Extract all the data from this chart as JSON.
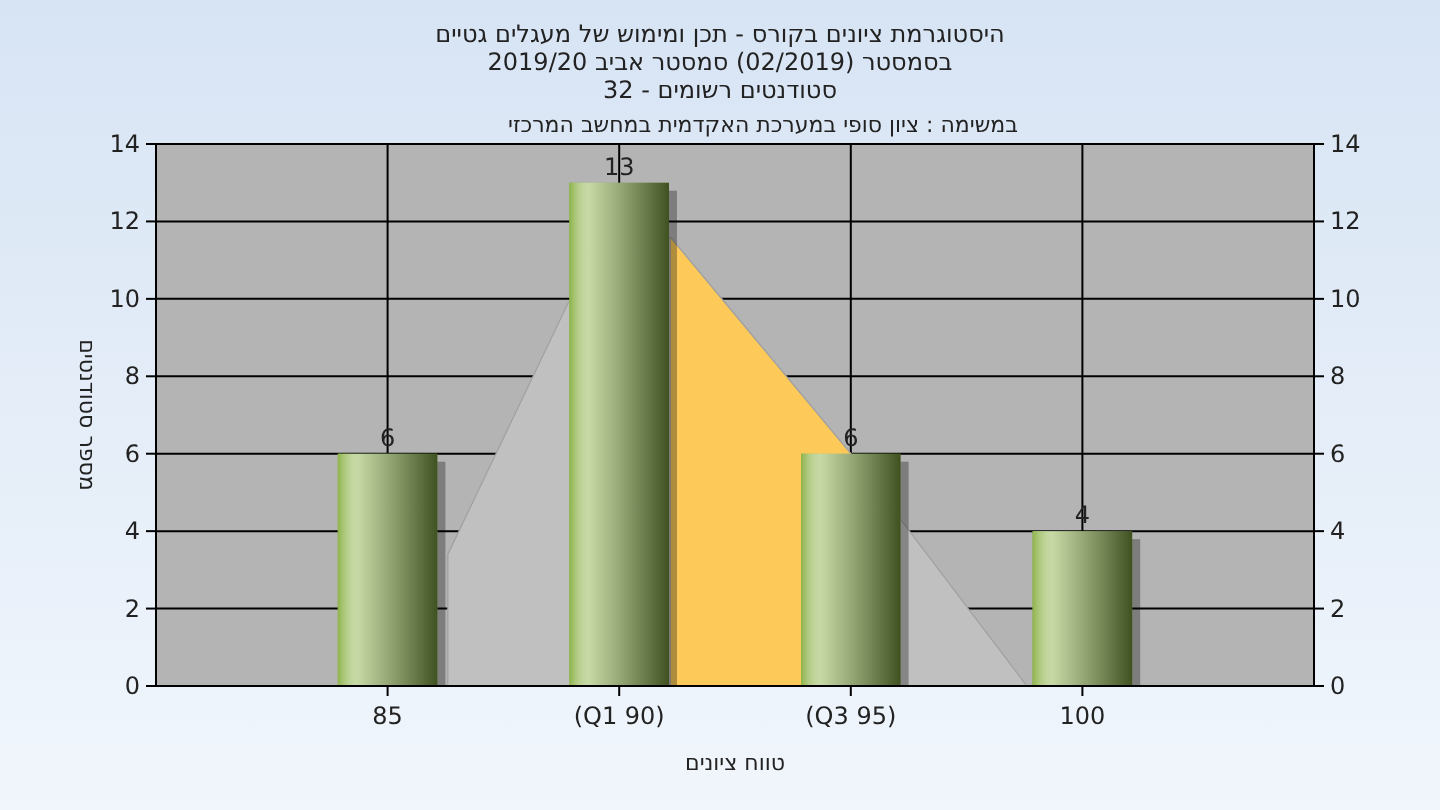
{
  "chart_data": {
    "type": "bar",
    "title": "היסטוגרמת ציונים בקורס - תכן ומימוש של מעגלים גטיים",
    "subtitle": "בסמסטר  (02/2019)  סמסטר אביב 2019/20\nסטודנטים רשומים - 32",
    "xlabel": "טווח ציונים",
    "ylabel": "מספר סטודנטים",
    "annotations": [
      "במשימה : ציון סופי במערכת האקדמית במחשב המרכזי"
    ],
    "xlim": [
      80,
      105
    ],
    "xticks": [
      85,
      {
        "value": 90,
        "label": "(Q1 90)"
      },
      {
        "value": 95,
        "label": "(Q3 95)"
      },
      100
    ],
    "ylim": [
      0,
      14
    ],
    "yticks": [
      0,
      2,
      4,
      6,
      8,
      10,
      12,
      14
    ],
    "y2lim": [
      0,
      14
    ],
    "y2ticks": [
      0,
      2,
      4,
      6,
      8,
      10,
      12,
      14
    ],
    "grid": true,
    "series": [
      {
        "type": "area",
        "color": "#c0c0c0",
        "x": [
          86.3,
          86.3,
          88.9,
          91.1,
          95,
          98.8
        ],
        "values": [
          0,
          3.4,
          9.9,
          11.6,
          6,
          0
        ]
      },
      {
        "type": "area",
        "color": "#fdc958",
        "x": [
          91.1,
          91.1,
          95,
          95
        ],
        "values": [
          0,
          11.6,
          6,
          0
        ]
      },
      {
        "color": "#8db34a",
        "x": [
          85,
          90,
          95,
          100
        ],
        "values": [
          6,
          13,
          6,
          4
        ],
        "value_labels": [
          "6",
          "13",
          "6",
          "4"
        ]
      }
    ]
  }
}
